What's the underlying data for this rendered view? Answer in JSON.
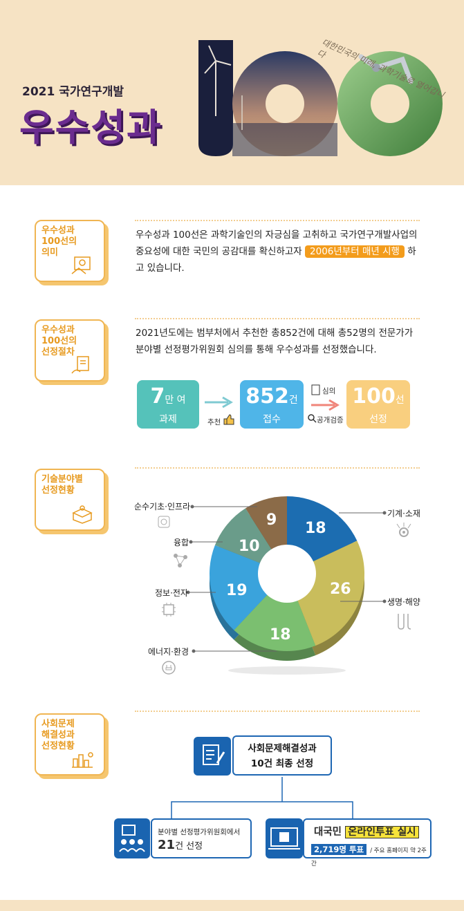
{
  "header": {
    "subtitle": "2021 국가연구개발",
    "title": "우수성과",
    "big_number": "100",
    "script_text": "대한민국의 미래, 과학기술로 열어갑니다"
  },
  "sections": {
    "meaning": {
      "label": "우수성과\n100선의\n의미",
      "text_before": "우수성과 100선은 과학기술인의 자긍심을 고취하고 국가연구개발사업의 중요성에 대한 국민의 공감대를 확신하고자 ",
      "highlight": "2006년부터 매년 시행",
      "text_after": " 하고 있습니다."
    },
    "procedure": {
      "label": "우수성과\n100선의\n선정절차",
      "text": "2021년도에는 범부처에서 추천한 총852건에 대해 총52명의 전문가가 분야별 선정평가위원회 심의를 통해 우수성과를 선정했습니다.",
      "steps": [
        {
          "num": "7",
          "unit": "만 여",
          "caption": "과제",
          "color": "#55c2ba"
        },
        {
          "num": "852",
          "unit": "건",
          "caption": "접수",
          "color": "#4fb5e8"
        },
        {
          "num": "100",
          "unit": "선",
          "caption": "선정",
          "color": "#f9cf7f"
        }
      ],
      "arrow1_label": "추천",
      "arrow2_top_label": "심의",
      "arrow2_bottom_label": "공개검증"
    },
    "tech": {
      "label": "기술분야별\n선정현황"
    },
    "social": {
      "label": "사회문제\n해결성과\n선정현황",
      "top_line1": "사회문제해결성과",
      "top_line2": "10건 최종 선정",
      "left_line1": "분야별 선정평가위원회에서",
      "left_num": "21",
      "left_suffix": "건 선정",
      "right_prefix": "대국민 ",
      "right_highlight": "온라인투표 실시",
      "right_votes": "2,719명 투표",
      "right_note": "/ 주요 홈페이지 약 2주간"
    }
  },
  "chart_data": {
    "type": "pie",
    "categories": [
      "기계·소재",
      "생명·해양",
      "에너지·환경",
      "정보·전자",
      "융합",
      "순수기초·인프라"
    ],
    "values": [
      18,
      26,
      18,
      19,
      10,
      9
    ],
    "colors": [
      "#1c6db1",
      "#c9bd5c",
      "#7bbf70",
      "#3aa3dc",
      "#6a9c8a",
      "#8b6b48"
    ]
  }
}
